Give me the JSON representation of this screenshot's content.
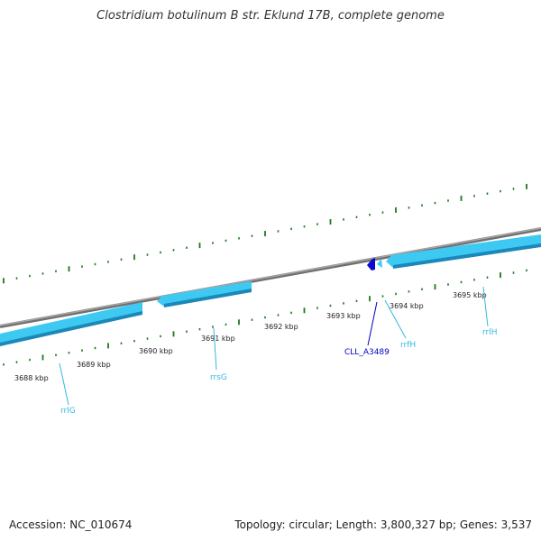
{
  "title": "Clostridium botulinum B str. Eklund 17B, complete genome",
  "footer": {
    "accession": "Accession: NC_010674",
    "stats": "Topology: circular; Length: 3,800,327 bp; Genes: 3,537"
  },
  "colors": {
    "backbone": "#808080",
    "gene": "#33c8f0",
    "gene_dark": "#1a8ab8",
    "highlight": "#0000c8",
    "tick": "#1a7a1a",
    "rna_label": "#33b8e0",
    "highlight_label": "#0000c0"
  },
  "scale_labels": [
    "3688 kbp",
    "3689 kbp",
    "3690 kbp",
    "3691 kbp",
    "3692 kbp",
    "3693 kbp",
    "3694 kbp",
    "3695 kbp"
  ],
  "features": [
    {
      "label": "rrlG",
      "type": "rRNA"
    },
    {
      "label": "rrsG",
      "type": "rRNA"
    },
    {
      "label": "CLL_A3489",
      "type": "highlight"
    },
    {
      "label": "rrfH",
      "type": "rRNA"
    },
    {
      "label": "rrlH",
      "type": "rRNA"
    }
  ]
}
